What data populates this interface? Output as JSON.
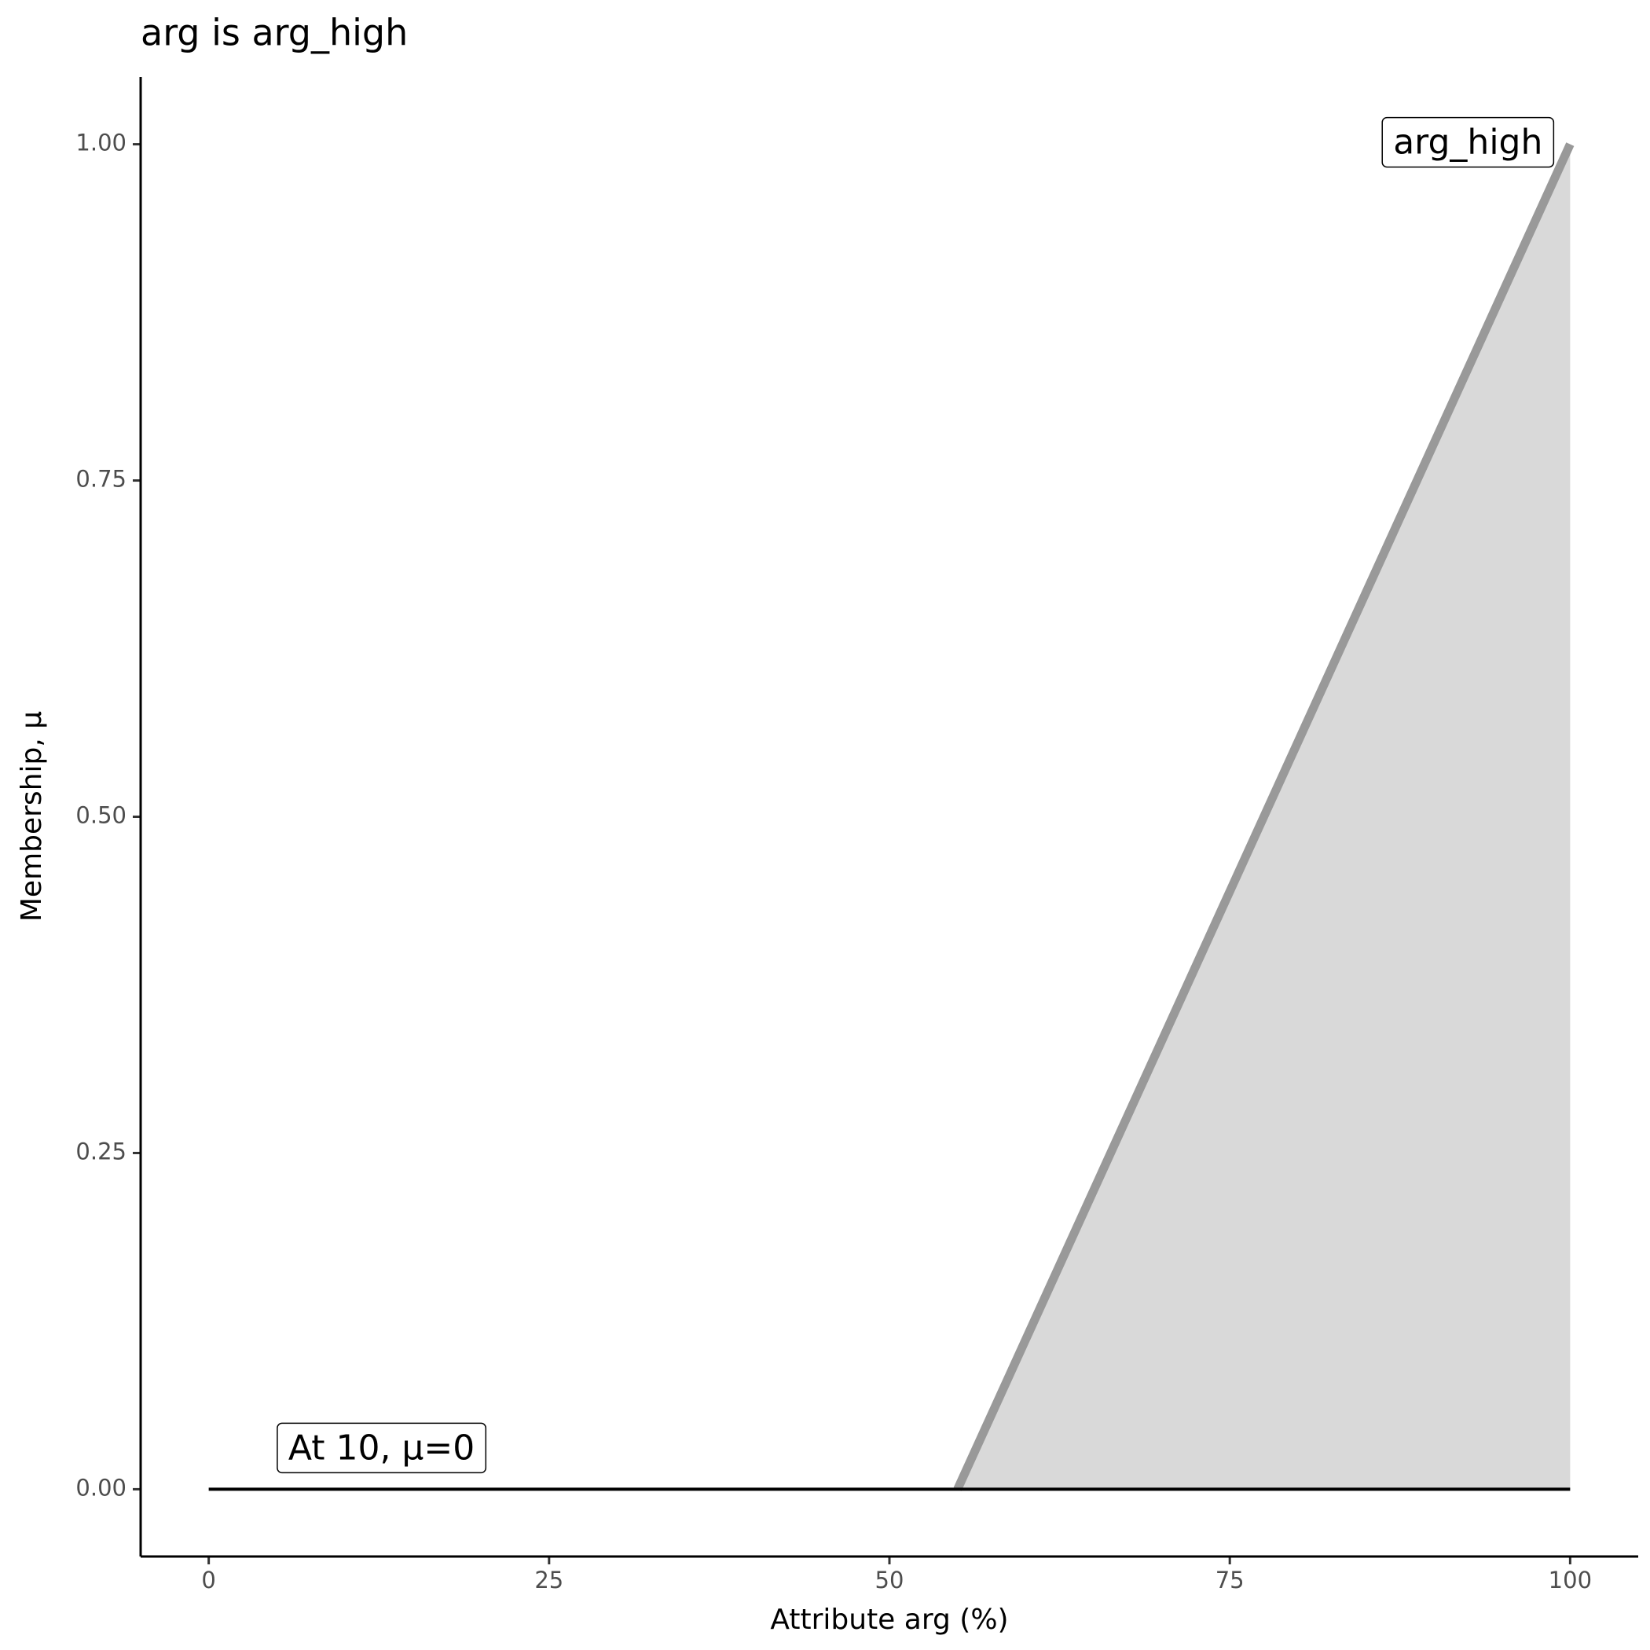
{
  "chart_data": {
    "type": "line",
    "title": "arg is arg_high",
    "x_label": "Attribute arg (%)",
    "y_label": "Membership, μ",
    "series": [
      {
        "name": "arg_high",
        "color": "#999999",
        "fill": "#d9d9d9",
        "x": [
          55,
          100
        ],
        "values": [
          0,
          1
        ]
      },
      {
        "color": "#000000",
        "x": [
          0,
          100
        ],
        "values": [
          0,
          0
        ]
      }
    ],
    "annotations": [
      {
        "text": "arg_high",
        "x": 100,
        "y": 1
      },
      {
        "text": "At 10, μ=0",
        "x": 10,
        "y": 0
      }
    ],
    "xlim": [
      -5,
      105
    ],
    "xticks": [
      0,
      25,
      50,
      75,
      100
    ],
    "ylim": [
      -0.05,
      1.05
    ],
    "yticks": [
      {
        "value": 0,
        "label": "0.00"
      },
      {
        "value": 0.25,
        "label": "0.25"
      },
      {
        "value": 0.5,
        "label": "0.50"
      },
      {
        "value": 0.75,
        "label": "0.75"
      },
      {
        "value": 1,
        "label": "1.00"
      }
    ]
  }
}
